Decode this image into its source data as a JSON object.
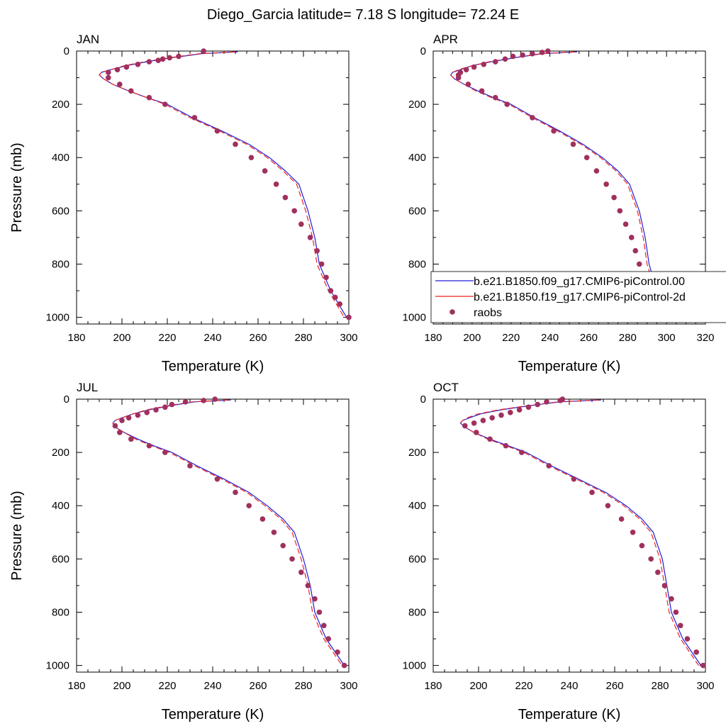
{
  "title": "Diego_Garcia  latitude= 7.18 S longitude= 72.24 E",
  "colors": {
    "model1": "#1f1fd6",
    "model2": "#ee2222",
    "raobs": "#a0305e"
  },
  "legend": {
    "placement": "inside APR panel, lower-right, extending past panel edge",
    "entries": [
      {
        "label": "b.e21.B1850.f09_g17.CMIP6-piControl.00",
        "style": "solid-line",
        "color_key": "model1"
      },
      {
        "label": "b.e21.B1850.f19_g17.CMIP6-piControl-2d",
        "style": "dashed-line",
        "color_key": "model2"
      },
      {
        "label": "raobs",
        "style": "dot",
        "color_key": "raobs"
      }
    ]
  },
  "chart_data": [
    {
      "type": "line",
      "panel": "JAN",
      "xlabel": "Temperature (K)",
      "ylabel": "Pressure (mb)",
      "xlim": [
        180,
        300
      ],
      "ylim": [
        1025,
        0
      ],
      "y_reversed": true,
      "xticks": [
        180,
        200,
        220,
        240,
        260,
        280,
        300
      ],
      "yticks": [
        0,
        200,
        400,
        600,
        800,
        1000
      ],
      "series": [
        {
          "name": "b.e21.B1850.f09_g17.CMIP6-piControl.00",
          "style": "solid",
          "color_key": "model1",
          "x": [
            251,
            235,
            222,
            211,
            202,
            195,
            191,
            190,
            192,
            196,
            203,
            211,
            220,
            231,
            244,
            256,
            265,
            272,
            278,
            282,
            285,
            287,
            292,
            299
          ],
          "y": [
            3,
            10,
            25,
            40,
            55,
            70,
            80,
            90,
            105,
            125,
            150,
            175,
            200,
            250,
            300,
            350,
            400,
            450,
            500,
            600,
            700,
            800,
            900,
            1000
          ]
        },
        {
          "name": "b.e21.B1850.f19_g17.CMIP6-piControl-2d",
          "style": "dashed",
          "color_key": "model2",
          "x": [
            250,
            234,
            221,
            210,
            201,
            195,
            191,
            190,
            192,
            196,
            203,
            211,
            219,
            230,
            243,
            255,
            264,
            271,
            277,
            281,
            284,
            286,
            291,
            298
          ],
          "y": [
            3,
            10,
            25,
            40,
            55,
            70,
            80,
            90,
            105,
            125,
            150,
            175,
            200,
            250,
            300,
            350,
            400,
            450,
            500,
            600,
            700,
            800,
            900,
            1000
          ]
        },
        {
          "name": "raobs",
          "style": "dot",
          "color_key": "raobs",
          "x": [
            236,
            225,
            221,
            218,
            216,
            212,
            207,
            202,
            198,
            194,
            194,
            199,
            204,
            212,
            219,
            232,
            242,
            250,
            257,
            263,
            268,
            272,
            276,
            279,
            283,
            286,
            288,
            290,
            292,
            294,
            296,
            300
          ],
          "y": [
            0,
            20,
            25,
            30,
            35,
            40,
            50,
            60,
            70,
            80,
            100,
            125,
            150,
            175,
            200,
            250,
            300,
            350,
            400,
            450,
            500,
            550,
            600,
            650,
            700,
            750,
            800,
            850,
            900,
            925,
            950,
            1000
          ]
        }
      ]
    },
    {
      "type": "line",
      "panel": "APR",
      "xlabel": "Temperature (K)",
      "ylabel": "",
      "xlim": [
        180,
        320
      ],
      "ylim": [
        1025,
        0
      ],
      "y_reversed": true,
      "xticks": [
        180,
        200,
        220,
        240,
        260,
        280,
        300,
        320
      ],
      "yticks": [
        0,
        200,
        400,
        600,
        800,
        1000
      ],
      "series": [
        {
          "name": "b.e21.B1850.f09_g17.CMIP6-piControl.00",
          "style": "solid",
          "color_key": "model1",
          "x": [
            254,
            236,
            222,
            210,
            200,
            194,
            190,
            189,
            191,
            196,
            203,
            211,
            220,
            232,
            245,
            257,
            267,
            275,
            281,
            286,
            289,
            291,
            295,
            300
          ],
          "y": [
            3,
            10,
            25,
            40,
            55,
            70,
            80,
            90,
            105,
            125,
            150,
            175,
            200,
            250,
            300,
            350,
            400,
            450,
            500,
            600,
            700,
            800,
            900,
            1000
          ]
        },
        {
          "name": "b.e21.B1850.f19_g17.CMIP6-piControl-2d",
          "style": "dashed",
          "color_key": "model2",
          "x": [
            253,
            235,
            221,
            209,
            200,
            193,
            190,
            189,
            191,
            196,
            202,
            210,
            219,
            231,
            244,
            256,
            266,
            274,
            280,
            285,
            288,
            290,
            294,
            299
          ],
          "y": [
            3,
            10,
            25,
            40,
            55,
            70,
            80,
            90,
            105,
            125,
            150,
            175,
            200,
            250,
            300,
            350,
            400,
            450,
            500,
            600,
            700,
            800,
            900,
            1000
          ]
        },
        {
          "name": "raobs",
          "style": "dot",
          "color_key": "raobs",
          "x": [
            239,
            236,
            231,
            226,
            221,
            217,
            212,
            206,
            201,
            197,
            194,
            193,
            193,
            198,
            205,
            212,
            218,
            231,
            242,
            252,
            259,
            264,
            269,
            273,
            276,
            279,
            282,
            284,
            286,
            289,
            291,
            293,
            295,
            297,
            300
          ],
          "y": [
            0,
            5,
            10,
            15,
            20,
            30,
            40,
            50,
            60,
            70,
            80,
            90,
            100,
            125,
            150,
            175,
            200,
            250,
            300,
            350,
            400,
            450,
            500,
            550,
            600,
            650,
            700,
            750,
            800,
            850,
            875,
            900,
            925,
            950,
            1000
          ]
        }
      ]
    },
    {
      "type": "line",
      "panel": "JUL",
      "xlabel": "Temperature (K)",
      "ylabel": "Pressure (mb)",
      "xlim": [
        180,
        300
      ],
      "ylim": [
        1025,
        0
      ],
      "y_reversed": true,
      "xticks": [
        180,
        200,
        220,
        240,
        260,
        280,
        300
      ],
      "yticks": [
        0,
        200,
        400,
        600,
        800,
        1000
      ],
      "series": [
        {
          "name": "b.e21.B1850.f09_g17.CMIP6-piControl.00",
          "style": "solid",
          "color_key": "model1",
          "x": [
            248,
            232,
            221,
            212,
            205,
            200,
            197,
            196,
            197,
            201,
            207,
            214,
            222,
            233,
            245,
            256,
            264,
            271,
            276,
            280,
            283,
            285,
            290,
            298
          ],
          "y": [
            3,
            10,
            25,
            40,
            55,
            70,
            80,
            90,
            105,
            125,
            150,
            175,
            200,
            250,
            300,
            350,
            400,
            450,
            500,
            600,
            700,
            800,
            900,
            1000
          ]
        },
        {
          "name": "b.e21.B1850.f19_g17.CMIP6-piControl-2d",
          "style": "dashed",
          "color_key": "model2",
          "x": [
            247,
            231,
            220,
            211,
            205,
            200,
            197,
            196,
            197,
            201,
            206,
            213,
            221,
            232,
            244,
            255,
            263,
            270,
            275,
            279,
            282,
            284,
            289,
            297
          ],
          "y": [
            3,
            10,
            25,
            40,
            55,
            70,
            80,
            90,
            105,
            125,
            150,
            175,
            200,
            250,
            300,
            350,
            400,
            450,
            500,
            600,
            700,
            800,
            900,
            1000
          ]
        },
        {
          "name": "raobs",
          "style": "dot",
          "color_key": "raobs",
          "x": [
            241,
            236,
            228,
            222,
            219,
            215,
            211,
            207,
            203,
            200,
            197,
            199,
            204,
            212,
            219,
            230,
            242,
            250,
            256,
            262,
            267,
            271,
            275,
            279,
            282,
            285,
            287,
            289,
            291,
            295,
            298
          ],
          "y": [
            0,
            5,
            10,
            20,
            30,
            40,
            50,
            60,
            70,
            80,
            100,
            125,
            150,
            175,
            200,
            250,
            300,
            350,
            400,
            450,
            500,
            550,
            600,
            650,
            700,
            750,
            800,
            850,
            900,
            950,
            1000
          ]
        }
      ]
    },
    {
      "type": "line",
      "panel": "OCT",
      "xlabel": "Temperature (K)",
      "ylabel": "",
      "xlim": [
        180,
        300
      ],
      "ylim": [
        1025,
        0
      ],
      "y_reversed": true,
      "xticks": [
        180,
        200,
        220,
        240,
        260,
        280,
        300
      ],
      "yticks": [
        0,
        200,
        400,
        600,
        800,
        1000
      ],
      "series": [
        {
          "name": "b.e21.B1850.f09_g17.CMIP6-piControl.00",
          "style": "solid",
          "color_key": "model1",
          "x": [
            254,
            236,
            222,
            210,
            201,
            196,
            193,
            192,
            194,
            198,
            205,
            213,
            221,
            232,
            244,
            256,
            265,
            272,
            277,
            281,
            283,
            285,
            290,
            298
          ],
          "y": [
            3,
            10,
            25,
            40,
            55,
            70,
            80,
            90,
            105,
            125,
            150,
            175,
            200,
            250,
            300,
            350,
            400,
            450,
            500,
            600,
            700,
            800,
            900,
            1000
          ]
        },
        {
          "name": "b.e21.B1850.f19_g17.CMIP6-piControl-2d",
          "style": "dashed",
          "color_key": "model2",
          "x": [
            253,
            235,
            221,
            209,
            200,
            195,
            193,
            192,
            194,
            198,
            204,
            212,
            220,
            231,
            243,
            255,
            264,
            271,
            276,
            280,
            282,
            284,
            289,
            297
          ],
          "y": [
            3,
            10,
            25,
            40,
            55,
            70,
            80,
            90,
            105,
            125,
            150,
            175,
            200,
            250,
            300,
            350,
            400,
            450,
            500,
            600,
            700,
            800,
            900,
            1000
          ]
        },
        {
          "name": "raobs",
          "style": "dot",
          "color_key": "raobs",
          "x": [
            237,
            236,
            230,
            226,
            222,
            218,
            214,
            210,
            206,
            202,
            198,
            194,
            199,
            205,
            212,
            219,
            231,
            242,
            250,
            257,
            263,
            268,
            272,
            276,
            279,
            282,
            285,
            287,
            289,
            292,
            296,
            299
          ],
          "y": [
            0,
            5,
            10,
            20,
            30,
            40,
            50,
            60,
            70,
            80,
            90,
            100,
            125,
            150,
            175,
            200,
            250,
            300,
            350,
            400,
            450,
            500,
            550,
            600,
            650,
            700,
            750,
            800,
            850,
            900,
            950,
            1000
          ]
        }
      ]
    }
  ]
}
